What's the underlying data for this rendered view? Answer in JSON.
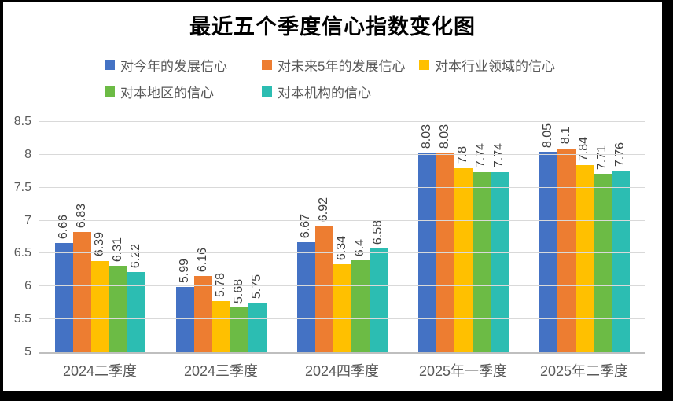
{
  "frame": {
    "background_color": "#000000",
    "panel_color": "#ffffff"
  },
  "chart_data": {
    "type": "bar",
    "title": "最近五个季度信心指数变化图",
    "categories": [
      "2024二季度",
      "2024三季度",
      "2024四季度",
      "2025年一季度",
      "2025年二季度"
    ],
    "series": [
      {
        "name": "对今年的发展信心",
        "color": "#4472C4",
        "values": [
          6.66,
          5.99,
          6.67,
          8.03,
          8.05
        ]
      },
      {
        "name": "对未来5年的发展信心",
        "color": "#ED7D31",
        "values": [
          6.83,
          6.16,
          6.92,
          8.03,
          8.1
        ]
      },
      {
        "name": "对本行业领域的信心",
        "color": "#FFC000",
        "values": [
          6.39,
          5.78,
          6.34,
          7.8,
          7.84
        ]
      },
      {
        "name": "对本地区的信心",
        "color": "#6CBB45",
        "values": [
          6.31,
          5.68,
          6.4,
          7.74,
          7.71
        ]
      },
      {
        "name": "对本机构的信心",
        "color": "#2CBDB2",
        "values": [
          6.22,
          5.75,
          6.58,
          7.74,
          7.76
        ]
      }
    ],
    "ylim": [
      5,
      8.5
    ],
    "yticks": [
      5,
      5.5,
      6,
      6.5,
      7,
      7.5,
      8,
      8.5
    ],
    "grid": true,
    "legend_position": "top",
    "data_labels": true,
    "data_label_rotation": "vertical",
    "grid_color": "#D9D9D9",
    "axis_line_color": "#BFBFBF",
    "label_text_color": "#404040",
    "tick_text_color": "#595959"
  }
}
